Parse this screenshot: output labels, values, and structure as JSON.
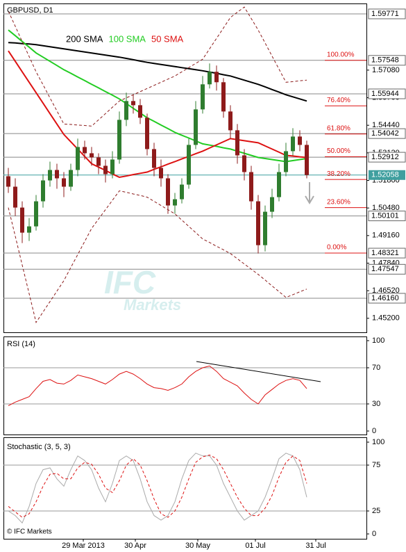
{
  "chart_data": [
    {
      "type": "candlestick",
      "title": "GBPUSD, D1",
      "xlim": [
        -0.7,
        51.6
      ],
      "ylim": [
        1.44529,
        1.6027
      ],
      "yticks": [
        {
          "value": 1.452,
          "label": "1.45200"
        },
        {
          "value": 1.4652,
          "label": "1.46520"
        },
        {
          "value": 1.4784,
          "label": "1.47840"
        },
        {
          "value": 1.4916,
          "label": "1.49160"
        },
        {
          "value": 1.5048,
          "label": "1.50480"
        },
        {
          "value": 1.518,
          "label": "1.51800"
        },
        {
          "value": 1.5312,
          "label": "1.53120"
        },
        {
          "value": 1.5444,
          "label": "1.54440"
        },
        {
          "value": 1.5576,
          "label": "1.55760"
        },
        {
          "value": 1.5708,
          "label": "1.57080"
        }
      ],
      "levels": [
        1.59771,
        1.57548,
        1.55944,
        1.54042,
        1.52912,
        1.50101,
        1.48321,
        1.47547,
        {
          "value": 1.4616,
          "label": "1.46160"
        }
      ],
      "last_price": 1.52058,
      "last_price_color": "#3f9f9f",
      "up_color": "#2f7d2f",
      "down_color": "#8e1b1b",
      "open": [
        1.52,
        1.515,
        1.505,
        1.493,
        1.496,
        1.508,
        1.518,
        1.523,
        1.519,
        1.515,
        1.523,
        1.534,
        1.531,
        1.529,
        1.525,
        1.521,
        1.528,
        1.547,
        1.556,
        1.554,
        1.548,
        1.533,
        1.524,
        1.519,
        1.506,
        1.509,
        1.516,
        1.535,
        1.552,
        1.564,
        1.57,
        1.565,
        1.551,
        1.542,
        1.53,
        1.522,
        1.508,
        1.487,
        1.503,
        1.51,
        1.522,
        1.532,
        1.539,
        1.535
      ],
      "high": [
        1.524,
        1.519,
        1.508,
        1.5,
        1.511,
        1.521,
        1.527,
        1.526,
        1.522,
        1.526,
        1.538,
        1.537,
        1.534,
        1.531,
        1.528,
        1.532,
        1.551,
        1.56,
        1.559,
        1.557,
        1.55,
        1.536,
        1.528,
        1.521,
        1.512,
        1.519,
        1.538,
        1.556,
        1.568,
        1.574,
        1.573,
        1.567,
        1.554,
        1.545,
        1.533,
        1.525,
        1.511,
        1.506,
        1.514,
        1.526,
        1.536,
        1.543,
        1.542,
        1.537
      ],
      "low": [
        1.512,
        1.501,
        1.488,
        1.489,
        1.494,
        1.505,
        1.515,
        1.514,
        1.51,
        1.513,
        1.52,
        1.528,
        1.525,
        1.521,
        1.517,
        1.519,
        1.526,
        1.544,
        1.55,
        1.545,
        1.53,
        1.52,
        1.515,
        1.502,
        1.502,
        1.507,
        1.514,
        1.533,
        1.55,
        1.562,
        1.561,
        1.548,
        1.538,
        1.526,
        1.518,
        1.504,
        1.483,
        1.484,
        1.5,
        1.508,
        1.52,
        1.53,
        1.532,
        1.519
      ],
      "close": [
        1.515,
        1.505,
        1.493,
        1.496,
        1.508,
        1.518,
        1.523,
        1.519,
        1.515,
        1.523,
        1.534,
        1.531,
        1.529,
        1.525,
        1.521,
        1.528,
        1.547,
        1.556,
        1.554,
        1.548,
        1.533,
        1.524,
        1.519,
        1.506,
        1.509,
        1.516,
        1.535,
        1.552,
        1.564,
        1.57,
        1.565,
        1.551,
        1.542,
        1.53,
        1.522,
        1.508,
        1.487,
        1.503,
        1.51,
        1.522,
        1.532,
        1.539,
        1.535,
        1.52058
      ],
      "series": [
        {
          "name": "200 SMA",
          "color": "#000000",
          "width": 2,
          "values": [
            1.584,
            1.5838,
            1.5835,
            1.5833,
            1.583,
            1.5825,
            1.582,
            1.5815,
            1.581,
            1.5805,
            1.58,
            1.5795,
            1.579,
            1.5785,
            1.578,
            1.5775,
            1.577,
            1.5764,
            1.5758,
            1.5751,
            1.5745,
            1.574,
            1.5735,
            1.573,
            1.5725,
            1.572,
            1.5715,
            1.571,
            1.5705,
            1.5699,
            1.5693,
            1.5686,
            1.568,
            1.567,
            1.566,
            1.565,
            1.564,
            1.5628,
            1.5615,
            1.5603,
            1.559,
            1.558,
            1.557,
            1.556
          ]
        },
        {
          "name": "100 SMA",
          "color": "#22cc22",
          "width": 2,
          "values": [
            1.59,
            1.5873,
            1.5845,
            1.5818,
            1.579,
            1.577,
            1.575,
            1.573,
            1.571,
            1.5693,
            1.5675,
            1.5658,
            1.564,
            1.5623,
            1.5605,
            1.5588,
            1.557,
            1.5548,
            1.5525,
            1.5503,
            1.548,
            1.5463,
            1.5445,
            1.5428,
            1.541,
            1.5396,
            1.5383,
            1.5369,
            1.5355,
            1.5349,
            1.5343,
            1.5336,
            1.533,
            1.532,
            1.531,
            1.53,
            1.529,
            1.5285,
            1.528,
            1.5275,
            1.527,
            1.5275,
            1.528,
            1.5285
          ]
        },
        {
          "name": "50 SMA",
          "color": "#dd1111",
          "width": 2,
          "values": [
            1.58,
            1.575,
            1.57,
            1.565,
            1.56,
            1.555,
            1.55,
            1.545,
            1.54,
            1.5365,
            1.533,
            1.5295,
            1.526,
            1.5244,
            1.5228,
            1.5211,
            1.5195,
            1.5201,
            1.5208,
            1.5214,
            1.522,
            1.5233,
            1.5245,
            1.5258,
            1.527,
            1.5283,
            1.5295,
            1.5308,
            1.532,
            1.5335,
            1.535,
            1.5365,
            1.538,
            1.5375,
            1.537,
            1.5365,
            1.536,
            1.5345,
            1.533,
            1.5315,
            1.53,
            1.5297,
            1.5293,
            1.529
          ]
        },
        {
          "color": "#8b1a1a",
          "width": 1,
          "dash": true,
          "values": [
            1.599,
            1.5918,
            1.5845,
            1.5773,
            1.57,
            1.5638,
            1.5575,
            1.5513,
            1.545,
            1.5448,
            1.5445,
            1.5443,
            1.544,
            1.547,
            1.55,
            1.553,
            1.556,
            1.5575,
            1.559,
            1.5605,
            1.562,
            1.5635,
            1.565,
            1.5665,
            1.568,
            1.57,
            1.572,
            1.574,
            1.576,
            1.581,
            1.586,
            1.591,
            1.596,
            1.5985,
            1.601,
            1.5955,
            1.59,
            1.5838,
            1.5775,
            1.5713,
            1.565,
            1.5653,
            1.5657,
            1.566
          ]
        },
        {
          "color": "#8b1a1a",
          "width": 1,
          "dash": true,
          "values": [
            1.505,
            1.4913,
            1.4775,
            1.4638,
            1.45,
            1.455,
            1.46,
            1.465,
            1.47,
            1.4763,
            1.4825,
            1.4888,
            1.495,
            1.4995,
            1.504,
            1.5085,
            1.513,
            1.5123,
            1.5115,
            1.5108,
            1.51,
            1.508,
            1.506,
            1.504,
            1.502,
            1.499,
            1.496,
            1.493,
            1.49,
            1.4883,
            1.4865,
            1.4848,
            1.483,
            1.4805,
            1.478,
            1.4755,
            1.473,
            1.4703,
            1.4675,
            1.4648,
            1.462,
            1.4633,
            1.4647,
            1.466
          ]
        }
      ],
      "fib": {
        "high": 1.57548,
        "low": 1.48321,
        "color": "#dd1111",
        "levels": [
          {
            "value": 100,
            "label": "100.00%"
          },
          {
            "value": 76.4,
            "label": "76.40%"
          },
          {
            "value": 61.8,
            "label": "61.80%"
          },
          {
            "value": 50,
            "label": "50.00%"
          },
          {
            "value": 38.2,
            "label": "38.20%"
          },
          {
            "value": 23.6,
            "label": "23.60%"
          },
          {
            "value": 0,
            "label": "0.00%"
          }
        ]
      },
      "watermark": {
        "logo": "IFC",
        "text": "Markets"
      }
    },
    {
      "type": "line",
      "title": "RSI (14)",
      "xlim": [
        -0.7,
        51.6
      ],
      "ylim": [
        0,
        100
      ],
      "yticks": [
        0,
        30,
        70,
        100
      ],
      "series": [
        {
          "color": "#dd1111",
          "width": 1,
          "values": [
            28,
            32,
            35,
            38,
            47,
            55,
            57,
            53,
            52,
            56,
            62,
            60,
            58,
            55,
            52,
            57,
            63,
            66,
            63,
            58,
            52,
            48,
            47,
            45,
            48,
            52,
            60,
            66,
            70,
            72,
            66,
            58,
            54,
            50,
            42,
            35,
            30,
            40,
            46,
            52,
            56,
            58,
            56,
            47
          ]
        }
      ]
    },
    {
      "type": "line",
      "title": "Stochastic (3, 5, 3)",
      "xlim": [
        -0.7,
        51.6
      ],
      "ylim": [
        0,
        100
      ],
      "yticks": [
        0,
        25,
        75,
        100
      ],
      "xticks": [
        {
          "value": 10.8,
          "label": "29 Mar 2013"
        },
        {
          "value": 18.3,
          "label": "30 Apr"
        },
        {
          "value": 27.3,
          "label": "30 May"
        },
        {
          "value": 35.6,
          "label": "01 Jul"
        },
        {
          "value": 44.3,
          "label": "31 Jul"
        }
      ],
      "series": [
        {
          "color": "#aaaaaa",
          "width": 1,
          "values": [
            25,
            20,
            12,
            30,
            55,
            70,
            72,
            60,
            52,
            70,
            85,
            80,
            70,
            50,
            35,
            55,
            80,
            85,
            80,
            60,
            35,
            20,
            15,
            20,
            35,
            60,
            80,
            88,
            85,
            85,
            75,
            55,
            40,
            25,
            15,
            20,
            25,
            40,
            60,
            82,
            88,
            85,
            70,
            40
          ]
        },
        {
          "color": "#dd1111",
          "width": 1,
          "dash": true,
          "values": [
            30,
            24,
            18,
            22,
            35,
            52,
            65,
            66,
            60,
            60,
            72,
            78,
            76,
            65,
            50,
            45,
            58,
            75,
            82,
            75,
            58,
            38,
            22,
            18,
            25,
            40,
            60,
            78,
            84,
            86,
            82,
            70,
            55,
            40,
            28,
            20,
            20,
            28,
            42,
            62,
            78,
            85,
            80,
            55
          ]
        }
      ],
      "copyright": "© IFC Markets"
    }
  ]
}
